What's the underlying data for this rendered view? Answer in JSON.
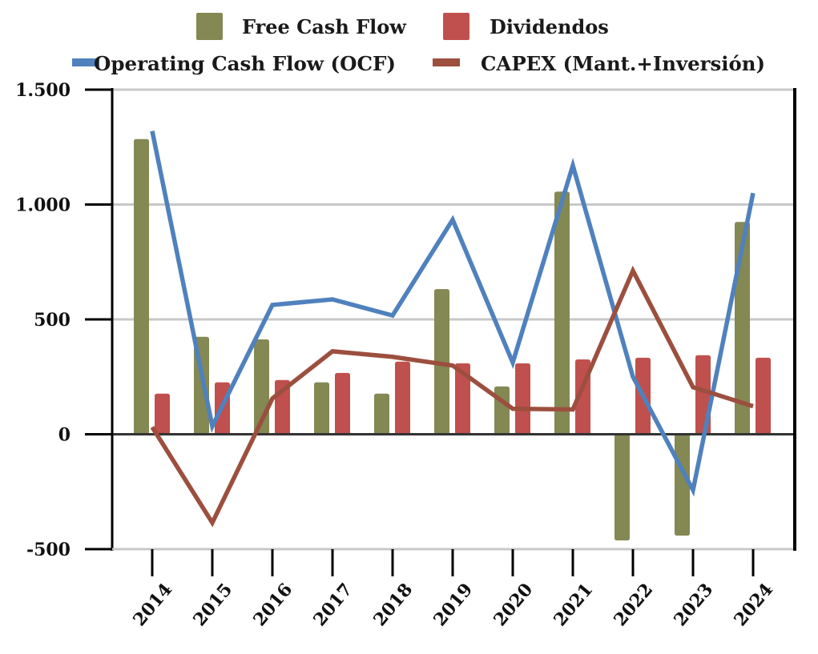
{
  "chart_data": {
    "type": "bar",
    "title": "",
    "xlabel": "",
    "ylabel": "",
    "categories": [
      "2014",
      "2015",
      "2016",
      "2017",
      "2018",
      "2019",
      "2020",
      "2021",
      "2022",
      "2023",
      "2024"
    ],
    "ylim": [
      -500,
      1500
    ],
    "yticks": [
      -500,
      0,
      500,
      1000,
      1500
    ],
    "ytick_labels": [
      "-500",
      "0",
      "500",
      "1.000",
      "1.500"
    ],
    "grid": true,
    "legend_position": "top",
    "series": [
      {
        "name": "Free Cash Flow",
        "kind": "bar",
        "color": "#848853",
        "values": [
          1285,
          424,
          413,
          226,
          177,
          632,
          208,
          1056,
          -462,
          -441,
          924
        ]
      },
      {
        "name": "Dividendos",
        "kind": "bar",
        "color": "#c0504d",
        "values": [
          177,
          226,
          236,
          267,
          316,
          309,
          309,
          326,
          333,
          344,
          333
        ]
      },
      {
        "name": "Operating Cash Flow (OCF)",
        "kind": "line",
        "color": "#4f81bd",
        "values": [
          1320,
          35,
          563,
          587,
          517,
          934,
          312,
          1170,
          250,
          -243,
          1050
        ]
      },
      {
        "name": "CAPEX (Mant.+Inversión)",
        "kind": "line",
        "color": "#9c4f3e",
        "values": [
          31,
          -385,
          156,
          361,
          337,
          299,
          111,
          108,
          712,
          205,
          122
        ]
      }
    ]
  },
  "legend": {
    "row1": [
      {
        "label": "Free Cash Flow",
        "color": "#848853"
      },
      {
        "label": "Dividendos",
        "color": "#c0504d"
      }
    ],
    "row2": [
      {
        "label": "Operating Cash Flow (OCF)",
        "color": "#4f81bd"
      },
      {
        "label": "CAPEX (Mant.+Inversión)",
        "color": "#9c4f3e"
      }
    ]
  }
}
